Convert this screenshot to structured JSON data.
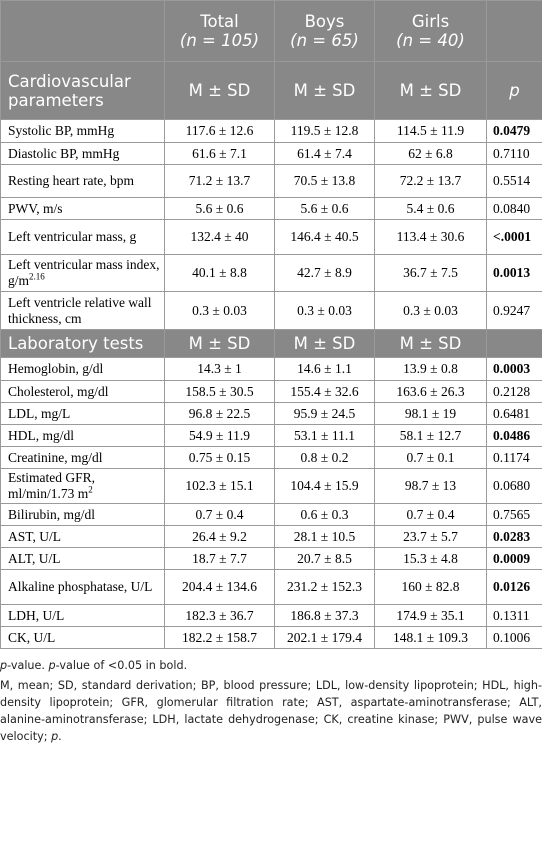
{
  "header": {
    "cols": [
      {
        "name": "Total",
        "n": "(n = 105)"
      },
      {
        "name": "Boys",
        "n": "(n = 65)"
      },
      {
        "name": "Girls",
        "n": "(n = 40)"
      }
    ]
  },
  "sections": [
    {
      "title": "Cardiovascular parameters",
      "stat": "M ± SD",
      "pcol": "p",
      "rows": [
        {
          "label": "Systolic BP, mmHg",
          "total": "117.6 ± 12.6",
          "boys": "119.5 ± 12.8",
          "girls": "114.5 ± 11.9",
          "p": "0.0479",
          "bold": true
        },
        {
          "label": "Diastolic BP, mmHg",
          "total": "61.6 ± 7.1",
          "boys": "61.4 ± 7.4",
          "girls": "62 ± 6.8",
          "p": "0.7110",
          "bold": false
        },
        {
          "label": "Resting heart rate, bpm",
          "total": "71.2 ± 13.7",
          "boys": "70.5 ± 13.8",
          "girls": "72.2 ± 13.7",
          "p": "0.5514",
          "bold": false
        },
        {
          "label": "PWV, m/s",
          "total": "5.6 ± 0.6",
          "boys": "5.6 ± 0.6",
          "girls": "5.4 ± 0.6",
          "p": "0.0840",
          "bold": false
        },
        {
          "label": "Left ventricular mass, g",
          "total": "132.4 ± 40",
          "boys": "146.4 ± 40.5",
          "girls": "113.4 ± 30.6",
          "p": "<.0001",
          "bold": true
        },
        {
          "label": "Left ventricular mass index, g/m",
          "sup": "2.16",
          "total": "40.1 ± 8.8",
          "boys": "42.7 ± 8.9",
          "girls": "36.7 ± 7.5",
          "p": "0.0013",
          "bold": true
        },
        {
          "label": "Left ventricle relative wall thickness, cm",
          "total": "0.3 ± 0.03",
          "boys": "0.3 ± 0.03",
          "girls": "0.3 ± 0.03",
          "p": "0.9247",
          "bold": false
        }
      ]
    },
    {
      "title": "Laboratory tests",
      "stat": "M ± SD",
      "pcol": "",
      "rows": [
        {
          "label": "Hemoglobin, g/dl",
          "total": "14.3 ± 1",
          "boys": "14.6 ± 1.1",
          "girls": "13.9 ± 0.8",
          "p": "0.0003",
          "bold": true
        },
        {
          "label": "Cholesterol, mg/dl",
          "total": "158.5 ± 30.5",
          "boys": "155.4 ± 32.6",
          "girls": "163.6 ± 26.3",
          "p": "0.2128",
          "bold": false
        },
        {
          "label": "LDL, mg/L",
          "total": "96.8 ± 22.5",
          "boys": "95.9 ± 24.5",
          "girls": "98.1 ± 19",
          "p": "0.6481",
          "bold": false
        },
        {
          "label": "HDL, mg/dl",
          "total": "54.9 ± 11.9",
          "boys": "53.1 ± 11.1",
          "girls": "58.1 ± 12.7",
          "p": "0.0486",
          "bold": true
        },
        {
          "label": "Creatinine, mg/dl",
          "total": "0.75 ± 0.15",
          "boys": "0.8 ± 0.2",
          "girls": "0.7 ± 0.1",
          "p": "0.1174",
          "bold": false
        },
        {
          "label": "Estimated GFR, ml/min/1.73 m",
          "sup": "2",
          "total": "102.3 ± 15.1",
          "boys": "104.4 ± 15.9",
          "girls": "98.7 ± 13",
          "p": "0.0680",
          "bold": false
        },
        {
          "label": "Bilirubin, mg/dl",
          "total": "0.7 ± 0.4",
          "boys": "0.6 ± 0.3",
          "girls": "0.7 ± 0.4",
          "p": "0.7565",
          "bold": false
        },
        {
          "label": "AST, U/L",
          "total": "26.4 ± 9.2",
          "boys": "28.1 ± 10.5",
          "girls": "23.7 ± 5.7",
          "p": "0.0283",
          "bold": true
        },
        {
          "label": "ALT, U/L",
          "total": "18.7 ± 7.7",
          "boys": "20.7 ± 8.5",
          "girls": "15.3 ± 4.8",
          "p": "0.0009",
          "bold": true
        },
        {
          "label": "Alkaline phosphatase, U/L",
          "total": "204.4 ± 134.6",
          "boys": "231.2 ± 152.3",
          "girls": "160 ± 82.8",
          "p": "0.0126",
          "bold": true
        },
        {
          "label": "LDH, U/L",
          "total": "182.3 ± 36.7",
          "boys": "186.8 ± 37.3",
          "girls": "174.9 ± 35.1",
          "p": "0.1311",
          "bold": false
        },
        {
          "label": "CK, U/L",
          "total": "182.2 ± 158.7",
          "boys": "202.1 ± 179.4",
          "girls": "148.1 ± 109.3",
          "p": "0.1006",
          "bold": false
        }
      ]
    }
  ],
  "footnotes": {
    "p_italic": "p",
    "line1_rest": "-value. ",
    "line1_italic2": "p",
    "line1_end": "-value of <0.05 in bold.",
    "line2": "M, mean; SD, standard derivation; BP, blood pressure; LDL, low-density lipoprotein; HDL, high-density lipoprotein; GFR, glomerular filtration rate; AST, aspartate-aminotransferase; ALT, alanine-aminotransferase; LDH, lactate dehydrogenase; CK, creatine kinase; PWV, pulse wave velocity; ",
    "line2_italic": "p",
    "line2_end": "."
  }
}
